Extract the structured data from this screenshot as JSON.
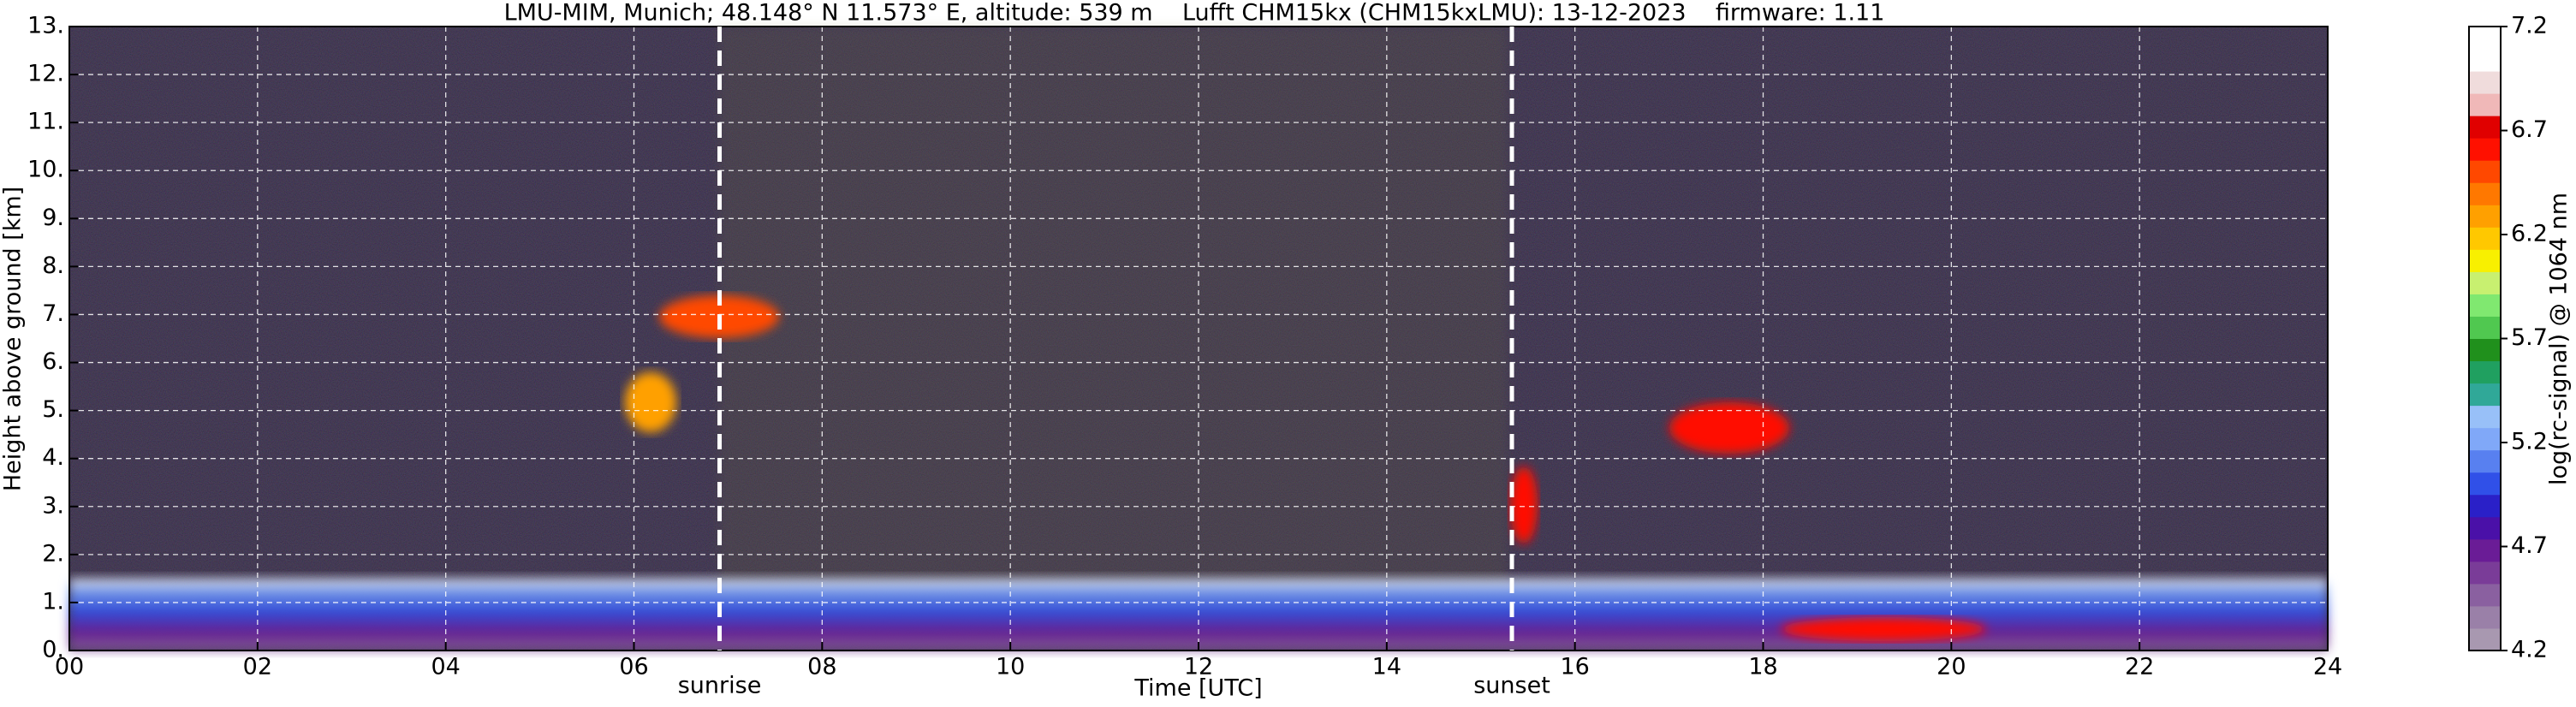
{
  "chart_data": {
    "type": "heatmap",
    "title": "LMU-MIM, Munich; 48.148° N 11.573° E, altitude: 539 m    Lufft CHM15kx (CHM15kxLMU): 13-12-2023    firmware: 1.11",
    "x_label": "Time [UTC]",
    "y_label": "Height above ground [km]",
    "colorbar_label": "log(rc-signal) @ 1064 nm",
    "xlim": [
      0,
      24
    ],
    "xticks": [
      {
        "value": 0,
        "label": "00"
      },
      {
        "value": 2,
        "label": "02"
      },
      {
        "value": 4,
        "label": "04"
      },
      {
        "value": 6,
        "label": "06"
      },
      {
        "value": 8,
        "label": "08"
      },
      {
        "value": 10,
        "label": "10"
      },
      {
        "value": 12,
        "label": "12"
      },
      {
        "value": 14,
        "label": "14"
      },
      {
        "value": 16,
        "label": "16"
      },
      {
        "value": 18,
        "label": "18"
      },
      {
        "value": 20,
        "label": "20"
      },
      {
        "value": 22,
        "label": "22"
      },
      {
        "value": 24,
        "label": "24"
      }
    ],
    "ylim": [
      0,
      13
    ],
    "yticks": [
      {
        "value": 0,
        "label": "0."
      },
      {
        "value": 1,
        "label": "1."
      },
      {
        "value": 2,
        "label": "2."
      },
      {
        "value": 3,
        "label": "3."
      },
      {
        "value": 4,
        "label": "4."
      },
      {
        "value": 5,
        "label": "5."
      },
      {
        "value": 6,
        "label": "6."
      },
      {
        "value": 7,
        "label": "7."
      },
      {
        "value": 8,
        "label": "8."
      },
      {
        "value": 9,
        "label": "9."
      },
      {
        "value": 10,
        "label": "10."
      },
      {
        "value": 11,
        "label": "11."
      },
      {
        "value": 12,
        "label": "12."
      },
      {
        "value": 13,
        "label": "13."
      }
    ],
    "clim": [
      4.2,
      7.2
    ],
    "cticks": [
      4.2,
      4.7,
      5.2,
      5.7,
      6.2,
      6.7,
      7.2
    ],
    "colormap": [
      "#a898b0",
      "#9a80a8",
      "#8a60a0",
      "#7a3c98",
      "#6a1c96",
      "#4a10a8",
      "#2a20c8",
      "#3050e8",
      "#5880f0",
      "#80a8f8",
      "#98c0f8",
      "#30a898",
      "#20a060",
      "#20901c",
      "#50c850",
      "#80e870",
      "#c8f070",
      "#f8f000",
      "#ffc800",
      "#ffa000",
      "#ff7800",
      "#ff4800",
      "#ff1000",
      "#e00000",
      "#f0b8b8",
      "#f0dcdc",
      "#ffffff",
      "#ffffff"
    ],
    "grid": true,
    "annotations": [
      {
        "text": "sunrise",
        "x": 6.91
      },
      {
        "text": "sunset",
        "x": 15.33
      }
    ]
  }
}
